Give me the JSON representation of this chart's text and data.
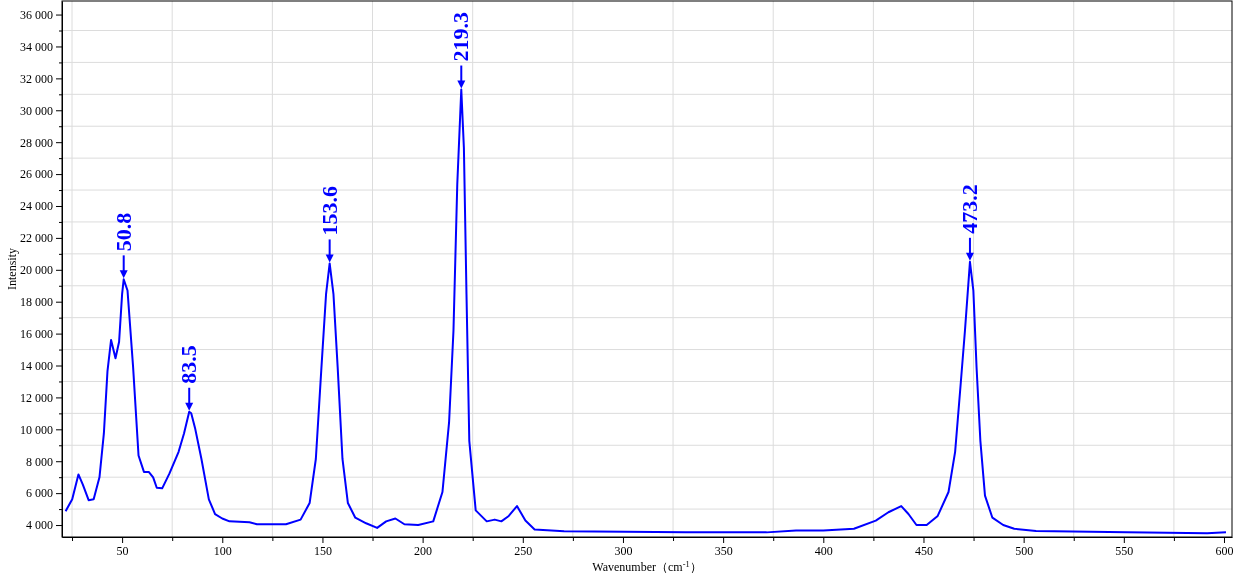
{
  "chart_data": {
    "type": "line",
    "xlabel": "Wavenumber（cm$^{-1}$）",
    "ylabel": "Intensity",
    "xlim": [
      20,
      604
    ],
    "ylim": [
      3250,
      36850
    ],
    "xticks": [
      {
        "value": 25,
        "label": null
      },
      50,
      {
        "value": 75,
        "label": null
      },
      100,
      {
        "value": 125,
        "label": null
      },
      150,
      {
        "value": 175,
        "label": null
      },
      200,
      {
        "value": 225,
        "label": null
      },
      250,
      {
        "value": 275,
        "label": null
      },
      300,
      {
        "value": 325,
        "label": null
      },
      350,
      {
        "value": 375,
        "label": null
      },
      400,
      {
        "value": 425,
        "label": null
      },
      450,
      {
        "value": 475,
        "label": null
      },
      500,
      {
        "value": 525,
        "label": null
      },
      550,
      {
        "value": 575,
        "label": null
      },
      600
    ],
    "yticks": [
      {
        "value": 4000,
        "label": "4 000"
      },
      {
        "value": 5000,
        "label": null
      },
      {
        "value": 6000,
        "label": "6 000"
      },
      {
        "value": 7000,
        "label": null
      },
      {
        "value": 8000,
        "label": "8 000"
      },
      {
        "value": 9000,
        "label": null
      },
      {
        "value": 10000,
        "label": "10 000"
      },
      {
        "value": 11000,
        "label": null
      },
      {
        "value": 12000,
        "label": "12 000"
      },
      {
        "value": 13000,
        "label": null
      },
      {
        "value": 14000,
        "label": "14 000"
      },
      {
        "value": 15000,
        "label": null
      },
      {
        "value": 16000,
        "label": "16 000"
      },
      {
        "value": 17000,
        "label": null
      },
      {
        "value": 18000,
        "label": "18 000"
      },
      {
        "value": 19000,
        "label": null
      },
      {
        "value": 20000,
        "label": "20 000"
      },
      {
        "value": 21000,
        "label": null
      },
      {
        "value": 22000,
        "label": "22 000"
      },
      {
        "value": 23000,
        "label": null
      },
      {
        "value": 24000,
        "label": "24 000"
      },
      {
        "value": 25000,
        "label": null
      },
      {
        "value": 26000,
        "label": "26 000"
      },
      {
        "value": 27000,
        "label": null
      },
      {
        "value": 28000,
        "label": "28 000"
      },
      {
        "value": 29000,
        "label": null
      },
      {
        "value": 30000,
        "label": "30 000"
      },
      {
        "value": 31000,
        "label": null
      },
      {
        "value": 32000,
        "label": "32 000"
      },
      {
        "value": 33000,
        "label": null
      },
      {
        "value": 34000,
        "label": "34 000"
      },
      {
        "value": 35000,
        "label": null
      },
      {
        "value": 36000,
        "label": "36 000"
      }
    ],
    "grid": true,
    "x": [
      21.8,
      25.1,
      28.2,
      30.4,
      33.3,
      35.8,
      38.7,
      40.9,
      42.7,
      44.5,
      46.7,
      48.5,
      50,
      50.8,
      52.7,
      55.5,
      58.2,
      60.9,
      63.3,
      65.5,
      67.3,
      70,
      73.6,
      78.2,
      80.9,
      83.5,
      84.5,
      86.4,
      89.6,
      93.3,
      96.4,
      100,
      103.6,
      113.6,
      117.3,
      131.8,
      139.1,
      143.6,
      146.7,
      149.5,
      151.8,
      153.6,
      155.5,
      157.6,
      160,
      162.7,
      166.4,
      171.8,
      177.3,
      181.8,
      186.4,
      190.9,
      197.8,
      205.3,
      209.9,
      213.2,
      215.4,
      217.3,
      219.3,
      220.6,
      221.9,
      223.3,
      226.5,
      232,
      236,
      239.3,
      243,
      247.1,
      251.3,
      255.9,
      270.6,
      331.3,
      371.7,
      386.4,
      400,
      415.3,
      426.2,
      432.5,
      438.9,
      442.5,
      446.5,
      451.6,
      457.1,
      462.5,
      465.8,
      468.5,
      470.7,
      473.2,
      474.9,
      476.5,
      478.4,
      480.7,
      484.4,
      489.8,
      495.3,
      506.2,
      524.4,
      551.6,
      591.6,
      601
    ],
    "series": [
      {
        "color": "#0000ff",
        "values": [
          4870,
          5610,
          7170,
          6530,
          5560,
          5610,
          6990,
          9740,
          13650,
          15600,
          14450,
          15490,
          18470,
          19400,
          18700,
          13880,
          8360,
          7330,
          7330,
          6990,
          6340,
          6300,
          7220,
          8590,
          9740,
          11100,
          11010,
          10090,
          8140,
          5610,
          4690,
          4410,
          4230,
          4180,
          4050,
          4050,
          4340,
          5380,
          8140,
          13880,
          18470,
          20400,
          18470,
          13880,
          8140,
          5380,
          4460,
          4110,
          3820,
          4230,
          4410,
          4050,
          4000,
          4230,
          6070,
          10430,
          16180,
          25360,
          31300,
          27660,
          18470,
          9280,
          4920,
          4230,
          4340,
          4230,
          4570,
          5190,
          4280,
          3720,
          3610,
          3540,
          3540,
          3660,
          3660,
          3770,
          4280,
          4800,
          5190,
          4690,
          4000,
          4000,
          4570,
          6070,
          8590,
          12730,
          16180,
          20500,
          18700,
          13880,
          9280,
          5840,
          4460,
          4000,
          3770,
          3630,
          3590,
          3540,
          3490,
          3540
        ]
      }
    ],
    "annotations": [
      {
        "text": "50.8",
        "x": 50.8,
        "y": 19400
      },
      {
        "text": "83.5",
        "x": 83.5,
        "y": 11100
      },
      {
        "text": "153.6",
        "x": 153.6,
        "y": 20400
      },
      {
        "text": "219.3",
        "x": 219.3,
        "y": 31300
      },
      {
        "text": "473.2",
        "x": 473.2,
        "y": 20500
      }
    ]
  }
}
